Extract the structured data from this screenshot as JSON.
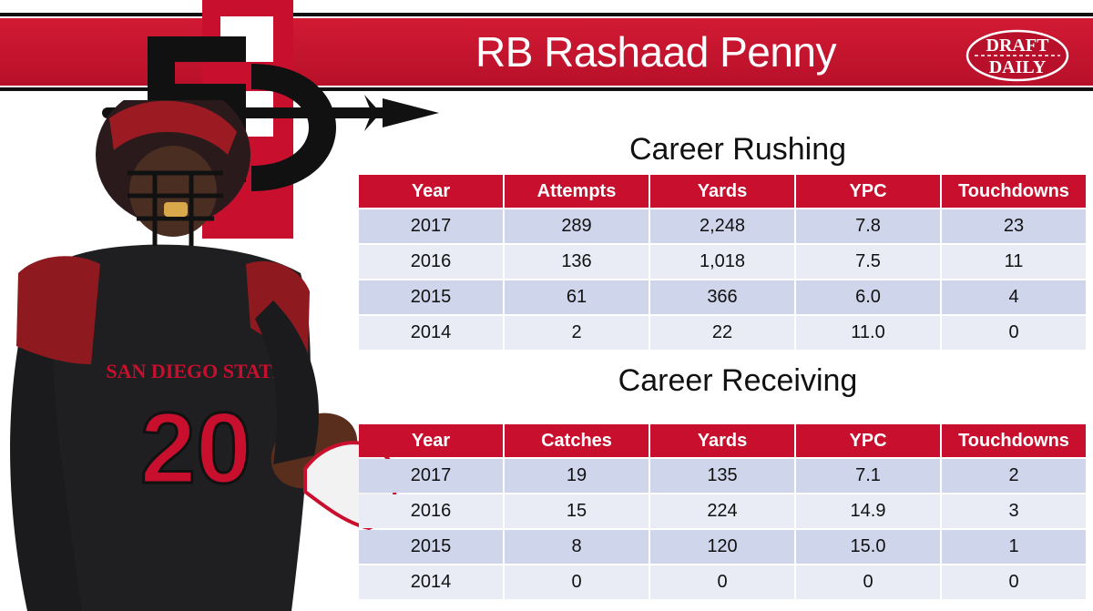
{
  "header": {
    "title": "RB Rashaad Penny",
    "brand_logo": {
      "line1": "DRAFT",
      "line2": "DAILY"
    }
  },
  "colors": {
    "banner_red": "#c8102e",
    "row_odd": "#cfd5ea",
    "row_even": "#e9ebf5",
    "logo_black": "#111111"
  },
  "icons": {
    "team_logo": "sdsu-sd-spear-logo",
    "player": "football-player-jersey-20-photo",
    "jersey_text": "SAN DIEGO STATE",
    "jersey_number": "20"
  },
  "rushing": {
    "title": "Career Rushing",
    "columns": [
      "Year",
      "Attempts",
      "Yards",
      "YPC",
      "Touchdowns"
    ],
    "rows": [
      [
        "2017",
        "289",
        "2,248",
        "7.8",
        "23"
      ],
      [
        "2016",
        "136",
        "1,018",
        "7.5",
        "11"
      ],
      [
        "2015",
        "61",
        "366",
        "6.0",
        "4"
      ],
      [
        "2014",
        "2",
        "22",
        "11.0",
        "0"
      ]
    ]
  },
  "receiving": {
    "title": "Career Receiving",
    "columns": [
      "Year",
      "Catches",
      "Yards",
      "YPC",
      "Touchdowns"
    ],
    "rows": [
      [
        "2017",
        "19",
        "135",
        "7.1",
        "2"
      ],
      [
        "2016",
        "15",
        "224",
        "14.9",
        "3"
      ],
      [
        "2015",
        "8",
        "120",
        "15.0",
        "1"
      ],
      [
        "2014",
        "0",
        "0",
        "0",
        "0"
      ]
    ]
  }
}
